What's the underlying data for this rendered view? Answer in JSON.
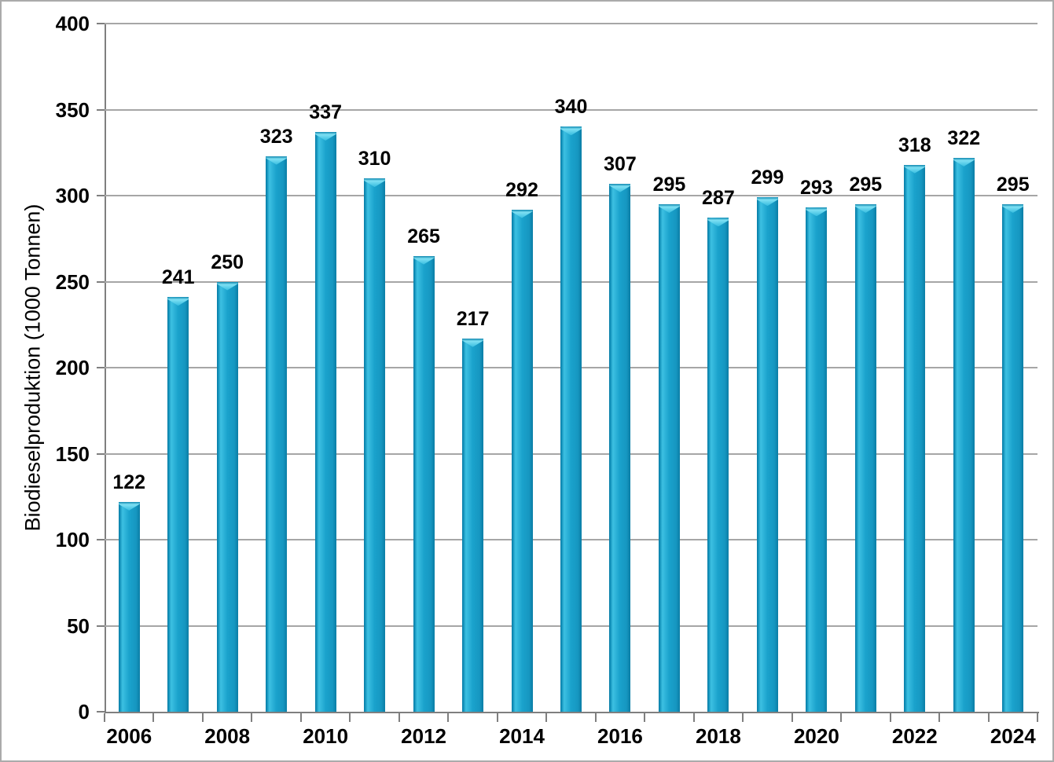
{
  "chart_data": {
    "type": "bar",
    "title": "",
    "xlabel": "",
    "ylabel": "Biodieselproduktion (1000 Tonnen)",
    "categories": [
      2006,
      2007,
      2008,
      2009,
      2010,
      2011,
      2012,
      2013,
      2014,
      2015,
      2016,
      2017,
      2018,
      2019,
      2020,
      2021,
      2022,
      2023,
      2024
    ],
    "values": [
      122,
      241,
      250,
      323,
      337,
      310,
      265,
      217,
      292,
      340,
      307,
      295,
      287,
      299,
      293,
      295,
      318,
      322,
      295
    ],
    "value_labels": [
      "122",
      "241",
      "250",
      "323",
      "337",
      "310",
      "265",
      "217",
      "292",
      "340",
      "307",
      "295",
      "287",
      "299",
      "293",
      "295",
      "318",
      "322",
      "295"
    ],
    "ylim": [
      0,
      400
    ],
    "yticks": [
      0,
      50,
      100,
      150,
      200,
      250,
      300,
      350,
      400
    ],
    "ytick_labels": [
      "0",
      "50",
      "100",
      "150",
      "200",
      "250",
      "300",
      "350",
      "400"
    ],
    "xtick_labeled_categories": [
      "2006",
      "2008",
      "2010",
      "2012",
      "2014",
      "2016",
      "2018",
      "2020",
      "2022",
      "2024"
    ],
    "grid": "horizontal-on",
    "legend": "none",
    "colors": {
      "bar_main": "#1aa2cc",
      "bar_highlight": "#3dc0e2",
      "bar_edge_dark": "#0b7da5",
      "bar_cap_light": "#7ee0f3",
      "gridline": "#a6a6a6",
      "axis_line": "#7f7f7f",
      "text": "#000000",
      "figure_border": "#ababab",
      "background": "#ffffff"
    }
  }
}
